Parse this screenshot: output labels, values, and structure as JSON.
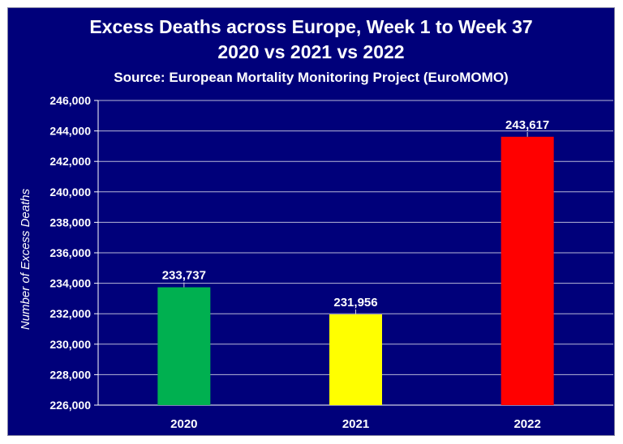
{
  "chart_data": {
    "type": "bar",
    "title": "Excess Deaths across Europe, Week 1 to Week 37",
    "title_line2": "2020 vs 2021 vs 2022",
    "subtitle": "Source: European Mortality Monitoring Project (EuroMOMO)",
    "xlabel": "",
    "ylabel": "Number of Excess Deaths",
    "categories": [
      "2020",
      "2021",
      "2022"
    ],
    "values": [
      233737,
      231956,
      243617
    ],
    "value_labels": [
      "233,737",
      "231,956",
      "243,617"
    ],
    "colors": [
      "#00b050",
      "#ffff00",
      "#ff0000"
    ],
    "ylim": [
      226000,
      246000
    ],
    "yticks": [
      226000,
      228000,
      230000,
      232000,
      234000,
      236000,
      238000,
      240000,
      242000,
      244000,
      246000
    ],
    "ytick_labels": [
      "226,000",
      "228,000",
      "230,000",
      "232,000",
      "234,000",
      "236,000",
      "238,000",
      "240,000",
      "242,000",
      "244,000",
      "246,000"
    ],
    "grid": true,
    "background": "#00007a",
    "legend": "none"
  }
}
